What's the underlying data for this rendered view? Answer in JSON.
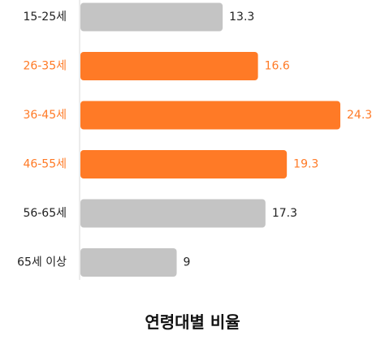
{
  "chart_data": {
    "type": "bar",
    "orientation": "horizontal",
    "title": "연령대별 비율",
    "categories": [
      "15-25세",
      "26-35세",
      "36-45세",
      "46-55세",
      "56-65세",
      "65세 이상"
    ],
    "values": [
      13.3,
      16.6,
      24.3,
      19.3,
      17.3,
      9
    ],
    "value_labels": [
      "13.3",
      "16.6",
      "24.3",
      "19.3",
      "17.3",
      "9"
    ],
    "highlighted": [
      false,
      true,
      true,
      true,
      false,
      false
    ],
    "xlim": [
      0,
      24.3
    ],
    "grid": false,
    "legend": "none"
  },
  "colors": {
    "highlight": "#ff7a26",
    "default": "#c4c4c4",
    "default_text": "#222222",
    "axis": "#d9d9d9"
  }
}
